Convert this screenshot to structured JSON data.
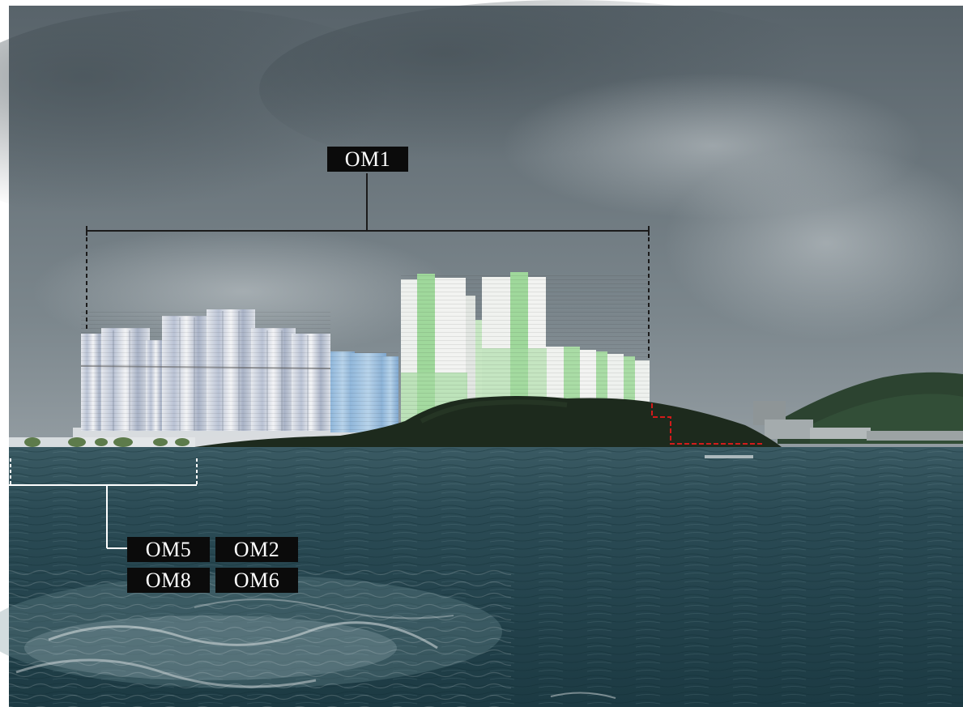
{
  "labels": {
    "om1": "OM1",
    "om5": "OM5",
    "om2": "OM2",
    "om8": "OM8",
    "om6": "OM6"
  },
  "colors": {
    "sky_top": "#5f6b72",
    "sky_bottom": "#b7bfc4",
    "sea_dark": "#223f49",
    "sea_mid": "#2f5560",
    "hill": "#1e2a1e",
    "proposed_green": "#a6dca2",
    "proposed_blue": "#9cc3e3",
    "callout_dark": "#1b1b1b",
    "callout_white": "#ffffff",
    "boundary_red": "#d21b1b"
  }
}
